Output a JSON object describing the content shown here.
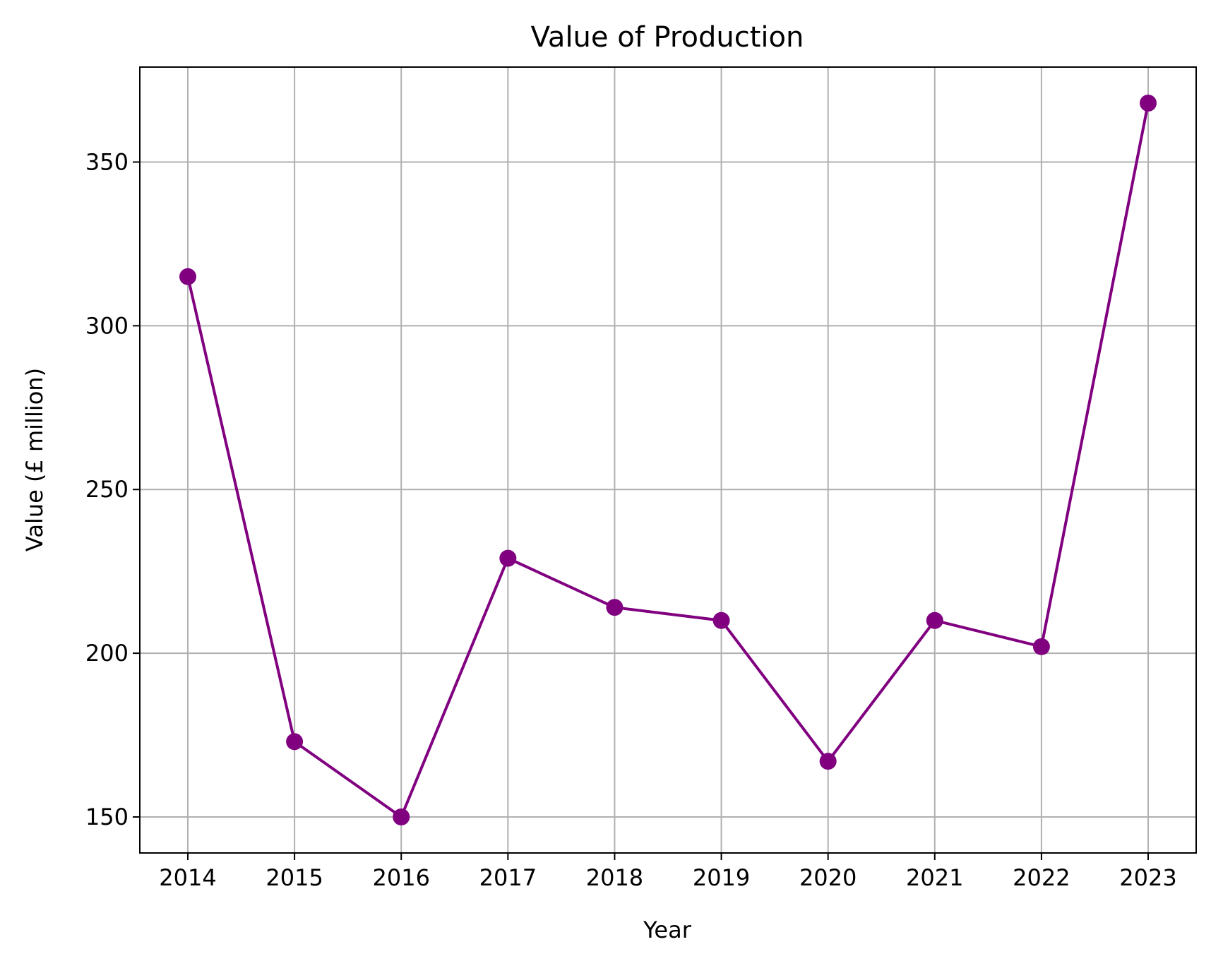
{
  "chart_data": {
    "type": "line",
    "title": "Value of Production",
    "xlabel": "Year",
    "ylabel": "Value (£ million)",
    "x": [
      "2014",
      "2015",
      "2016",
      "2017",
      "2018",
      "2019",
      "2020",
      "2021",
      "2022",
      "2023"
    ],
    "series": [
      {
        "values": [
          315,
          173,
          150,
          229,
          214,
          210,
          167,
          210,
          202,
          368
        ],
        "color": "#800080",
        "marker": "circle"
      }
    ],
    "ylim": [
      139,
      379
    ],
    "yticks": [
      150,
      200,
      250,
      300,
      350
    ],
    "grid": true,
    "grid_color": "#b0b0b0",
    "legend": false
  }
}
